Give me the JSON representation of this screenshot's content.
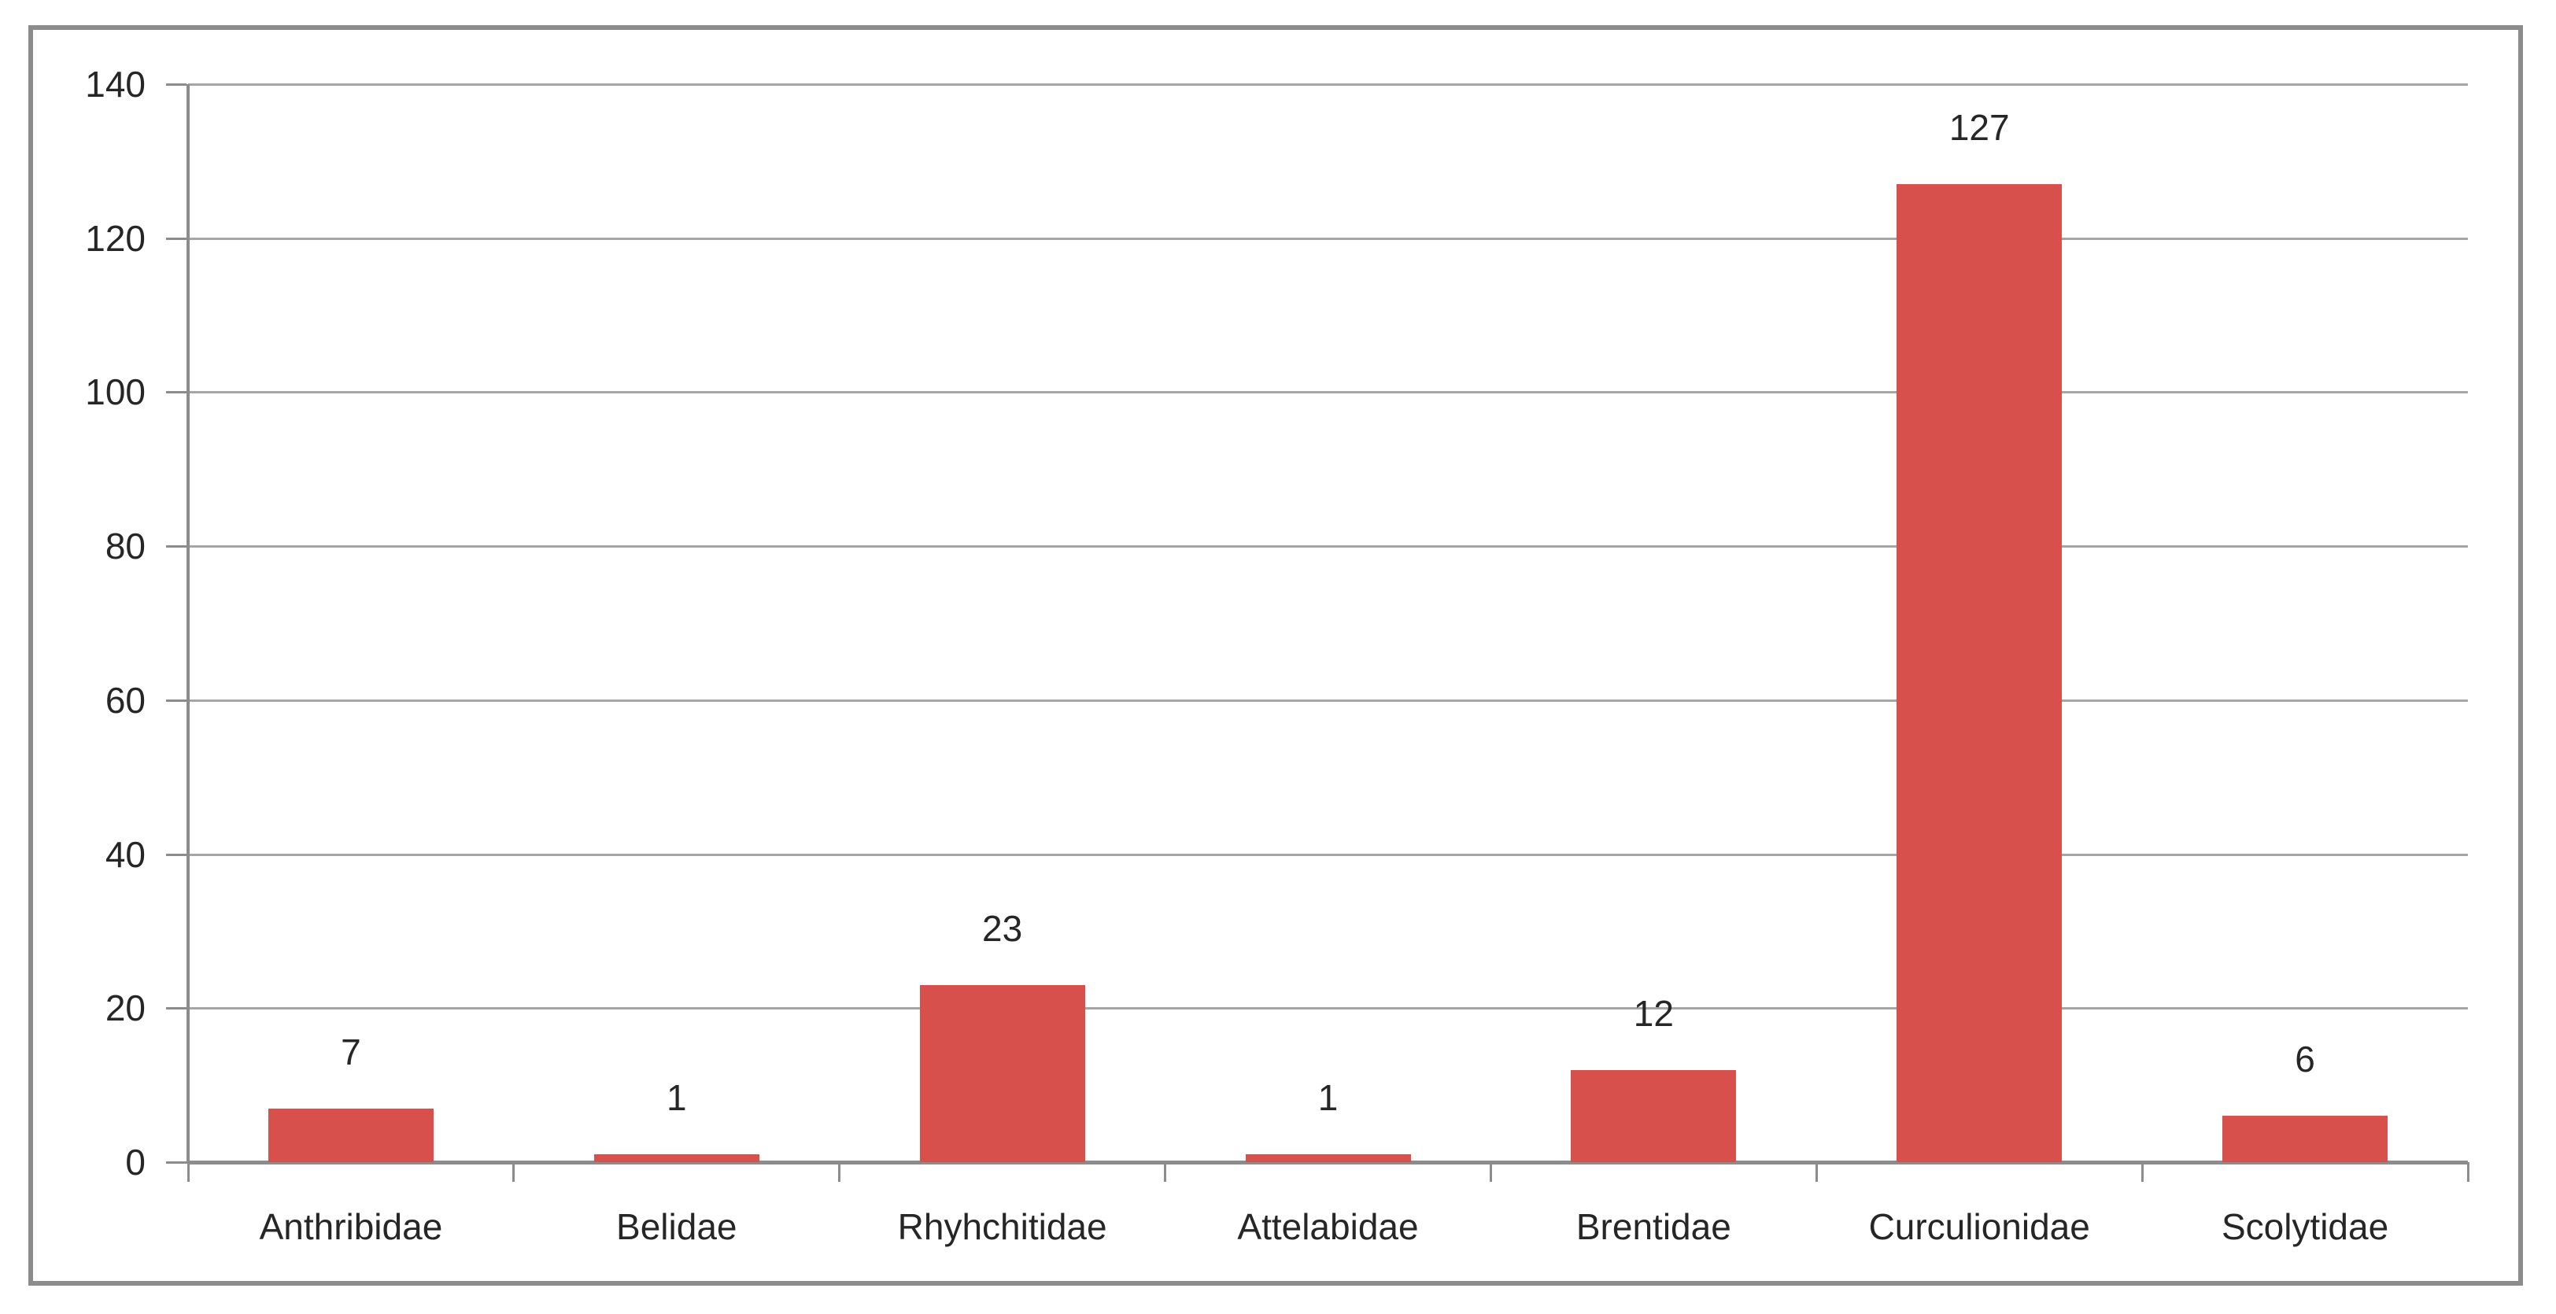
{
  "chart_data": {
    "type": "bar",
    "categories": [
      "Anthribidae",
      "Belidae",
      "Rhyhchitidae",
      "Attelabidae",
      "Brentidae",
      "Curculionidae",
      "Scolytidae"
    ],
    "values": [
      7,
      1,
      23,
      1,
      12,
      127,
      6
    ],
    "yticks": [
      0,
      20,
      40,
      60,
      80,
      100,
      120,
      140
    ],
    "ylim": [
      0,
      140
    ],
    "xlabel": "",
    "ylabel": "",
    "grid": true,
    "legend": false,
    "value_labels_shown": true
  },
  "colors": {
    "bar": "#D8504C",
    "gridline": "#A6A6A6",
    "axis": "#8C8C8C",
    "frame": "#8C8C8C",
    "text": "#262626",
    "background": "#FFFFFF"
  }
}
